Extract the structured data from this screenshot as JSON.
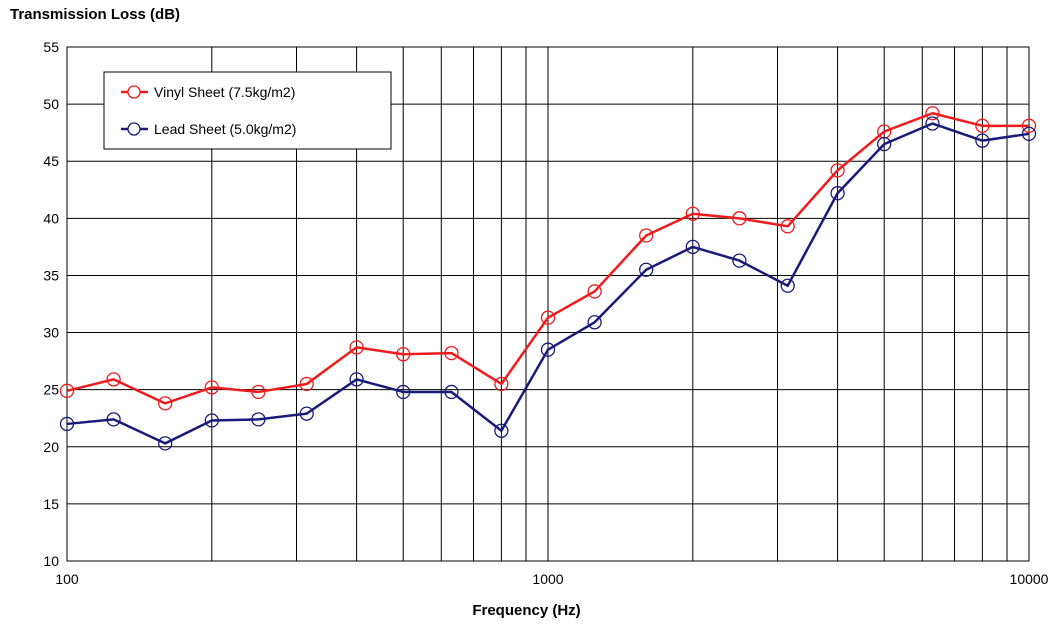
{
  "chart_data": {
    "type": "line",
    "title": "",
    "ylabel": "Transmission Loss (dB)",
    "xlabel": "Frequency (Hz)",
    "xscale": "log",
    "xlim": [
      100,
      10000
    ],
    "ylim": [
      10,
      55
    ],
    "x_ticks": [
      "100",
      "1000",
      "10000"
    ],
    "y_ticks": [
      "10",
      "15",
      "20",
      "25",
      "30",
      "35",
      "40",
      "45",
      "50",
      "55"
    ],
    "grid": true,
    "legend_position": "top-left",
    "x": [
      100,
      125,
      160,
      200,
      250,
      315,
      400,
      500,
      630,
      800,
      1000,
      1250,
      1600,
      2000,
      2500,
      3150,
      4000,
      5000,
      6300,
      8000,
      10000
    ],
    "series": [
      {
        "name": "Vinyl Sheet (7.5kg/m2)",
        "color": "#ee1c1c",
        "values": [
          24.9,
          25.9,
          23.8,
          25.2,
          24.8,
          25.5,
          28.7,
          28.1,
          28.2,
          25.5,
          31.3,
          33.6,
          38.5,
          40.4,
          40.0,
          39.3,
          44.2,
          47.6,
          49.2,
          48.1,
          48.1
        ]
      },
      {
        "name": "Lead Sheet (5.0kg/m2)",
        "color": "#1a1a7a",
        "values": [
          22.0,
          22.4,
          20.3,
          22.3,
          22.4,
          22.9,
          25.9,
          24.8,
          24.8,
          21.4,
          28.5,
          30.9,
          35.5,
          37.5,
          36.3,
          34.1,
          42.2,
          46.5,
          48.3,
          46.8,
          47.4
        ]
      }
    ]
  }
}
